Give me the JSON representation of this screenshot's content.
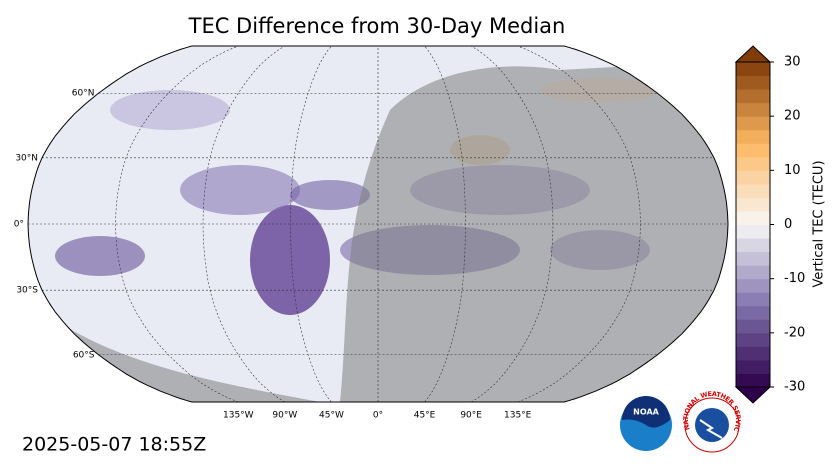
{
  "chart_data": {
    "type": "map",
    "title": "TEC Difference from 30-Day Median",
    "timestamp": "2025-05-07 18:55Z",
    "lat_ticks": [
      {
        "value": 60,
        "label": "60°N"
      },
      {
        "value": 30,
        "label": "30°N"
      },
      {
        "value": 0,
        "label": "0°"
      },
      {
        "value": -30,
        "label": "30°S"
      },
      {
        "value": -60,
        "label": "60°S"
      }
    ],
    "lon_ticks": [
      {
        "value": -135,
        "label": "135°W"
      },
      {
        "value": -90,
        "label": "90°W"
      },
      {
        "value": -45,
        "label": "45°W"
      },
      {
        "value": 0,
        "label": "0°"
      },
      {
        "value": 45,
        "label": "45°E"
      },
      {
        "value": 90,
        "label": "90°E"
      },
      {
        "value": 135,
        "label": "135°E"
      }
    ],
    "colorbar": {
      "label": "Vertical TEC (TECU)",
      "lim": [
        -30,
        30
      ],
      "ticks": [
        30,
        20,
        10,
        0,
        -10,
        -20,
        -30
      ]
    },
    "logos": {
      "noaa": "NOAA",
      "nws": "NATIONAL WEATHER SERVICE"
    }
  }
}
